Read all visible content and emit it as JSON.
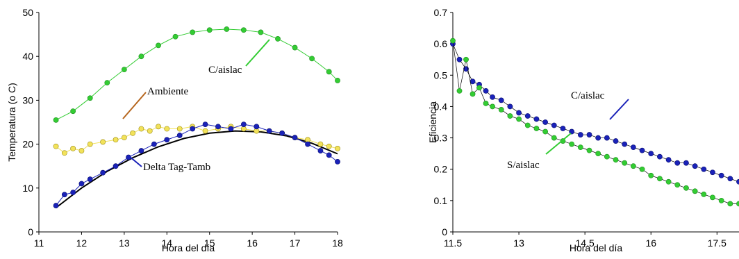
{
  "colors": {
    "green": "#33cc33",
    "green_edge": "#1f8f1f",
    "yellow": "#f2e25a",
    "yellow_edge": "#9a8a10",
    "blue": "#1a22b8",
    "blue_edge": "#0a0f70",
    "fit": "#000000",
    "arrow_ambiente": "#b5651d",
    "arrow_green": "#33cc33",
    "arrow_blue": "#1a22b8"
  },
  "chart_data": [
    {
      "type": "scatter",
      "title": "",
      "xlabel": "Hora del día",
      "ylabel": "Temperatura (o C)",
      "xlim": [
        11,
        18
      ],
      "ylim": [
        0,
        50
      ],
      "x_ticks": [
        "11",
        "12",
        "13",
        "14",
        "15",
        "16",
        "17",
        "18"
      ],
      "y_ticks": [
        "0",
        "10",
        "20",
        "30",
        "40",
        "50"
      ],
      "grid": false,
      "series": [
        {
          "name": "C/aislac",
          "color_key": "green",
          "x": [
            11.4,
            11.8,
            12.2,
            12.6,
            13.0,
            13.4,
            13.8,
            14.2,
            14.6,
            15.0,
            15.4,
            15.8,
            16.2,
            16.6,
            17.0,
            17.4,
            17.8,
            18.0
          ],
          "y": [
            25.5,
            27.5,
            30.5,
            34.0,
            37.0,
            40.0,
            42.5,
            44.5,
            45.5,
            46.0,
            46.2,
            46.0,
            45.5,
            44.0,
            42.0,
            39.5,
            36.5,
            34.5
          ]
        },
        {
          "name": "Ambiente",
          "color_key": "yellow",
          "x": [
            11.4,
            11.6,
            11.8,
            12.0,
            12.2,
            12.5,
            12.8,
            13.0,
            13.2,
            13.4,
            13.6,
            13.8,
            14.0,
            14.3,
            14.6,
            14.9,
            15.2,
            15.5,
            15.8,
            16.1,
            16.4,
            16.7,
            17.0,
            17.3,
            17.6,
            17.8,
            18.0
          ],
          "y": [
            19.5,
            18.0,
            19.0,
            18.5,
            20.0,
            20.5,
            21.0,
            21.5,
            22.5,
            23.5,
            23.0,
            24.0,
            23.5,
            23.5,
            24.0,
            23.0,
            23.5,
            24.0,
            23.5,
            23.0,
            23.0,
            22.5,
            21.5,
            21.0,
            20.0,
            19.5,
            19.0
          ]
        },
        {
          "name": "Delta Tag-Tamb",
          "color_key": "blue",
          "x": [
            11.4,
            11.6,
            11.8,
            12.0,
            12.2,
            12.5,
            12.8,
            13.1,
            13.4,
            13.7,
            14.0,
            14.3,
            14.6,
            14.9,
            15.2,
            15.5,
            15.8,
            16.1,
            16.4,
            16.7,
            17.0,
            17.3,
            17.6,
            17.8,
            18.0
          ],
          "y": [
            6.0,
            8.5,
            9.0,
            11.0,
            12.0,
            13.5,
            15.0,
            17.0,
            18.5,
            20.0,
            21.0,
            22.0,
            23.5,
            24.5,
            24.0,
            23.5,
            24.5,
            24.0,
            23.0,
            22.5,
            21.5,
            20.0,
            18.5,
            17.5,
            16.0
          ]
        }
      ],
      "fit_line": {
        "x": [
          11.4,
          12.0,
          12.6,
          13.2,
          13.8,
          14.4,
          15.0,
          15.6,
          16.2,
          16.8,
          17.4,
          18.0
        ],
        "y": [
          5.5,
          10.0,
          13.8,
          16.9,
          19.4,
          21.3,
          22.5,
          23.0,
          22.8,
          21.9,
          20.2,
          17.8
        ]
      },
      "annotations": [
        "C/aislac",
        "Ambiente",
        "Delta Tag-Tamb"
      ]
    },
    {
      "type": "scatter",
      "title": "",
      "xlabel": "Hora del día",
      "ylabel": "Eficiencia",
      "xlim": [
        11.5,
        18.0
      ],
      "ylim": [
        0,
        0.7
      ],
      "x_ticks": [
        "11.5",
        "13",
        "14.5",
        "16",
        "17.5"
      ],
      "y_ticks": [
        "0",
        "0.1",
        "0.2",
        "0.3",
        "0.4",
        "0.5",
        "0.6",
        "0.7"
      ],
      "grid": false,
      "series": [
        {
          "name": "C/aislac",
          "color_key": "blue",
          "x": [
            11.5,
            11.65,
            11.8,
            11.95,
            12.1,
            12.25,
            12.4,
            12.6,
            12.8,
            13.0,
            13.2,
            13.4,
            13.6,
            13.8,
            14.0,
            14.2,
            14.4,
            14.6,
            14.8,
            15.0,
            15.2,
            15.4,
            15.6,
            15.8,
            16.0,
            16.2,
            16.4,
            16.6,
            16.8,
            17.0,
            17.2,
            17.4,
            17.6,
            17.8,
            18.0
          ],
          "y": [
            0.6,
            0.55,
            0.52,
            0.48,
            0.47,
            0.45,
            0.43,
            0.42,
            0.4,
            0.38,
            0.37,
            0.36,
            0.35,
            0.34,
            0.33,
            0.32,
            0.31,
            0.31,
            0.3,
            0.3,
            0.29,
            0.28,
            0.27,
            0.26,
            0.25,
            0.24,
            0.23,
            0.22,
            0.22,
            0.21,
            0.2,
            0.19,
            0.18,
            0.17,
            0.16
          ]
        },
        {
          "name": "S/aislac",
          "color_key": "green",
          "x": [
            11.5,
            11.65,
            11.8,
            11.95,
            12.1,
            12.25,
            12.4,
            12.6,
            12.8,
            13.0,
            13.2,
            13.4,
            13.6,
            13.8,
            14.0,
            14.2,
            14.4,
            14.6,
            14.8,
            15.0,
            15.2,
            15.4,
            15.6,
            15.8,
            16.0,
            16.2,
            16.4,
            16.6,
            16.8,
            17.0,
            17.2,
            17.4,
            17.6,
            17.8,
            18.0
          ],
          "y": [
            0.61,
            0.45,
            0.55,
            0.44,
            0.46,
            0.41,
            0.4,
            0.39,
            0.37,
            0.36,
            0.34,
            0.33,
            0.32,
            0.3,
            0.29,
            0.28,
            0.27,
            0.26,
            0.25,
            0.24,
            0.23,
            0.22,
            0.21,
            0.2,
            0.18,
            0.17,
            0.16,
            0.15,
            0.14,
            0.13,
            0.12,
            0.11,
            0.1,
            0.09,
            0.09
          ]
        }
      ],
      "annotations": [
        "C/aislac",
        "S/aislac"
      ]
    }
  ]
}
